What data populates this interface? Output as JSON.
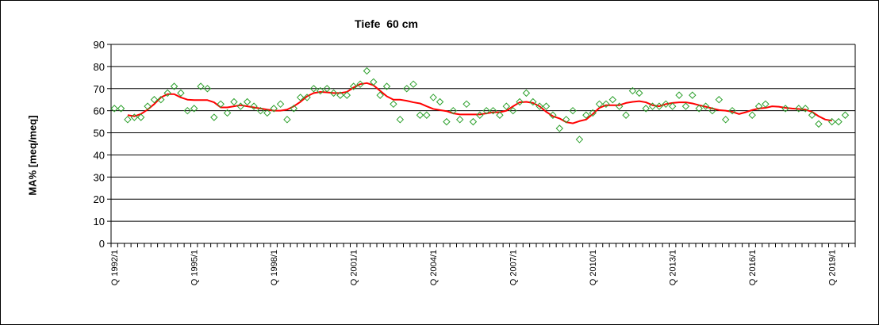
{
  "chart_data": {
    "type": "scatter",
    "title": "Tiefe  60 cm",
    "xlabel": "",
    "ylabel": "MA% [meq/meq]",
    "ylim": [
      0,
      90
    ],
    "yticks": [
      0,
      10,
      20,
      30,
      40,
      50,
      60,
      70,
      80,
      90
    ],
    "grid": true,
    "legend": "none",
    "x_unit": "quarter",
    "x_start": "Q 1992/1",
    "x_end": "Q 2019/4",
    "xtick_labels": [
      "Q 1992/1",
      "Q 1995/1",
      "Q 1998/1",
      "Q 2001/1",
      "Q 2004/1",
      "Q 2007/1",
      "Q 2010/1",
      "Q 2013/1",
      "Q 2016/1",
      "Q 2019/1"
    ],
    "colors": {
      "points": "#2ca02c",
      "trend": "#ff0000",
      "grid": "#000000",
      "axis": "#000000"
    },
    "series": [
      {
        "type": "scatter",
        "marker": "diamond-open",
        "points": [
          [
            "Q 1992/1",
            61
          ],
          [
            "Q 1992/2",
            61
          ],
          [
            "Q 1992/3",
            56
          ],
          [
            "Q 1992/4",
            57
          ],
          [
            "Q 1993/1",
            57
          ],
          [
            "Q 1993/2",
            62
          ],
          [
            "Q 1993/3",
            65
          ],
          [
            "Q 1993/4",
            65
          ],
          [
            "Q 1994/1",
            68
          ],
          [
            "Q 1994/2",
            71
          ],
          [
            "Q 1994/3",
            68
          ],
          [
            "Q 1994/4",
            60
          ],
          [
            "Q 1995/1",
            61
          ],
          [
            "Q 1995/2",
            71
          ],
          [
            "Q 1995/3",
            70
          ],
          [
            "Q 1995/4",
            57
          ],
          [
            "Q 1996/1",
            63
          ],
          [
            "Q 1996/2",
            59
          ],
          [
            "Q 1996/3",
            64
          ],
          [
            "Q 1996/4",
            62
          ],
          [
            "Q 1997/1",
            64
          ],
          [
            "Q 1997/2",
            62
          ],
          [
            "Q 1997/3",
            60
          ],
          [
            "Q 1997/4",
            59
          ],
          [
            "Q 1998/1",
            61
          ],
          [
            "Q 1998/2",
            63
          ],
          [
            "Q 1998/3",
            56
          ],
          [
            "Q 1998/4",
            61
          ],
          [
            "Q 1999/1",
            66
          ],
          [
            "Q 1999/2",
            66
          ],
          [
            "Q 1999/3",
            70
          ],
          [
            "Q 1999/4",
            69
          ],
          [
            "Q 2000/1",
            70
          ],
          [
            "Q 2000/2",
            68
          ],
          [
            "Q 2000/3",
            67
          ],
          [
            "Q 2000/4",
            67
          ],
          [
            "Q 2001/1",
            71
          ],
          [
            "Q 2001/2",
            72
          ],
          [
            "Q 2001/3",
            78
          ],
          [
            "Q 2001/4",
            73
          ],
          [
            "Q 2002/1",
            67
          ],
          [
            "Q 2002/2",
            71
          ],
          [
            "Q 2002/3",
            63
          ],
          [
            "Q 2002/4",
            56
          ],
          [
            "Q 2003/1",
            70
          ],
          [
            "Q 2003/2",
            72
          ],
          [
            "Q 2003/3",
            58
          ],
          [
            "Q 2003/4",
            58
          ],
          [
            "Q 2004/1",
            66
          ],
          [
            "Q 2004/2",
            64
          ],
          [
            "Q 2004/3",
            55
          ],
          [
            "Q 2004/4",
            60
          ],
          [
            "Q 2005/1",
            56
          ],
          [
            "Q 2005/2",
            63
          ],
          [
            "Q 2005/3",
            55
          ],
          [
            "Q 2005/4",
            58
          ],
          [
            "Q 2006/1",
            60
          ],
          [
            "Q 2006/2",
            60
          ],
          [
            "Q 2006/3",
            58
          ],
          [
            "Q 2006/4",
            62
          ],
          [
            "Q 2007/1",
            60
          ],
          [
            "Q 2007/2",
            64
          ],
          [
            "Q 2007/3",
            68
          ],
          [
            "Q 2007/4",
            64
          ],
          [
            "Q 2008/1",
            62
          ],
          [
            "Q 2008/2",
            62
          ],
          [
            "Q 2008/3",
            58
          ],
          [
            "Q 2008/4",
            52
          ],
          [
            "Q 2009/1",
            56
          ],
          [
            "Q 2009/2",
            60
          ],
          [
            "Q 2009/3",
            47
          ],
          [
            "Q 2009/4",
            58
          ],
          [
            "Q 2010/1",
            59
          ],
          [
            "Q 2010/2",
            63
          ],
          [
            "Q 2010/3",
            63
          ],
          [
            "Q 2010/4",
            65
          ],
          [
            "Q 2011/1",
            62
          ],
          [
            "Q 2011/2",
            58
          ],
          [
            "Q 2011/3",
            69
          ],
          [
            "Q 2011/4",
            68
          ],
          [
            "Q 2012/1",
            61
          ],
          [
            "Q 2012/2",
            62
          ],
          [
            "Q 2012/3",
            62
          ],
          [
            "Q 2012/4",
            63
          ],
          [
            "Q 2013/1",
            62
          ],
          [
            "Q 2013/2",
            67
          ],
          [
            "Q 2013/3",
            62
          ],
          [
            "Q 2013/4",
            67
          ],
          [
            "Q 2014/1",
            61
          ],
          [
            "Q 2014/2",
            62
          ],
          [
            "Q 2014/3",
            60
          ],
          [
            "Q 2014/4",
            65
          ],
          [
            "Q 2015/1",
            56
          ],
          [
            "Q 2015/2",
            60
          ],
          [
            "Q 2016/1",
            58
          ],
          [
            "Q 2016/2",
            62
          ],
          [
            "Q 2016/3",
            63
          ],
          [
            "Q 2017/2",
            61
          ],
          [
            "Q 2017/4",
            61
          ],
          [
            "Q 2018/1",
            61
          ],
          [
            "Q 2018/2",
            58
          ],
          [
            "Q 2018/3",
            54
          ],
          [
            "Q 2019/1",
            55
          ],
          [
            "Q 2019/2",
            55
          ],
          [
            "Q 2019/3",
            58
          ]
        ]
      },
      {
        "type": "line",
        "points": [
          [
            "Q 1992/3",
            58
          ],
          [
            "Q 1992/4",
            57.5
          ],
          [
            "Q 1993/1",
            58.5
          ],
          [
            "Q 1993/2",
            60.5
          ],
          [
            "Q 1993/3",
            63
          ],
          [
            "Q 1993/4",
            66
          ],
          [
            "Q 1994/1",
            67.5
          ],
          [
            "Q 1994/2",
            67.5
          ],
          [
            "Q 1994/3",
            66
          ],
          [
            "Q 1994/4",
            65
          ],
          [
            "Q 1995/1",
            64.8
          ],
          [
            "Q 1995/2",
            64.8
          ],
          [
            "Q 1995/3",
            64.8
          ],
          [
            "Q 1995/4",
            63.8
          ],
          [
            "Q 1996/1",
            61.5
          ],
          [
            "Q 1996/2",
            61.5
          ],
          [
            "Q 1996/3",
            62
          ],
          [
            "Q 1996/4",
            62.5
          ],
          [
            "Q 1997/1",
            62
          ],
          [
            "Q 1997/2",
            61.5
          ],
          [
            "Q 1997/3",
            61
          ],
          [
            "Q 1997/4",
            60.5
          ],
          [
            "Q 1998/1",
            60
          ],
          [
            "Q 1998/2",
            60
          ],
          [
            "Q 1998/3",
            60.5
          ],
          [
            "Q 1998/4",
            62
          ],
          [
            "Q 1999/1",
            64
          ],
          [
            "Q 1999/2",
            66.5
          ],
          [
            "Q 1999/3",
            68
          ],
          [
            "Q 1999/4",
            68.5
          ],
          [
            "Q 2000/1",
            68.3
          ],
          [
            "Q 2000/2",
            68
          ],
          [
            "Q 2000/3",
            68
          ],
          [
            "Q 2000/4",
            68.5
          ],
          [
            "Q 2001/1",
            70.5
          ],
          [
            "Q 2001/2",
            72
          ],
          [
            "Q 2001/3",
            72.5
          ],
          [
            "Q 2001/4",
            71.5
          ],
          [
            "Q 2002/1",
            69
          ],
          [
            "Q 2002/2",
            66.5
          ],
          [
            "Q 2002/3",
            65
          ],
          [
            "Q 2002/4",
            65
          ],
          [
            "Q 2003/1",
            64.5
          ],
          [
            "Q 2003/2",
            63.8
          ],
          [
            "Q 2003/3",
            63.3
          ],
          [
            "Q 2003/4",
            62
          ],
          [
            "Q 2004/1",
            60.8
          ],
          [
            "Q 2004/2",
            60.3
          ],
          [
            "Q 2004/3",
            59.8
          ],
          [
            "Q 2004/4",
            58.8
          ],
          [
            "Q 2005/1",
            58.3
          ],
          [
            "Q 2005/2",
            58.3
          ],
          [
            "Q 2005/3",
            58.3
          ],
          [
            "Q 2005/4",
            58.3
          ],
          [
            "Q 2006/1",
            58.8
          ],
          [
            "Q 2006/2",
            59.3
          ],
          [
            "Q 2006/3",
            59.3
          ],
          [
            "Q 2006/4",
            60
          ],
          [
            "Q 2007/1",
            62
          ],
          [
            "Q 2007/2",
            63.8
          ],
          [
            "Q 2007/3",
            64
          ],
          [
            "Q 2007/4",
            63.5
          ],
          [
            "Q 2008/1",
            62
          ],
          [
            "Q 2008/2",
            59.5
          ],
          [
            "Q 2008/3",
            57.5
          ],
          [
            "Q 2008/4",
            56.5
          ],
          [
            "Q 2009/1",
            54.8
          ],
          [
            "Q 2009/2",
            54.3
          ],
          [
            "Q 2009/3",
            55.3
          ],
          [
            "Q 2009/4",
            56
          ],
          [
            "Q 2010/1",
            58.5
          ],
          [
            "Q 2010/2",
            61.3
          ],
          [
            "Q 2010/3",
            62.5
          ],
          [
            "Q 2010/4",
            62.5
          ],
          [
            "Q 2011/1",
            62.5
          ],
          [
            "Q 2011/2",
            63.5
          ],
          [
            "Q 2011/3",
            64
          ],
          [
            "Q 2011/4",
            64.3
          ],
          [
            "Q 2012/1",
            63.8
          ],
          [
            "Q 2012/2",
            62.5
          ],
          [
            "Q 2012/3",
            62
          ],
          [
            "Q 2012/4",
            63
          ],
          [
            "Q 2013/1",
            63.5
          ],
          [
            "Q 2013/2",
            63.8
          ],
          [
            "Q 2013/3",
            63.8
          ],
          [
            "Q 2013/4",
            63.3
          ],
          [
            "Q 2014/1",
            62.5
          ],
          [
            "Q 2014/2",
            61.8
          ],
          [
            "Q 2014/3",
            61
          ],
          [
            "Q 2014/4",
            60.3
          ],
          [
            "Q 2015/1",
            60
          ],
          [
            "Q 2015/2",
            59.5
          ],
          [
            "Q 2015/3",
            58.5
          ],
          [
            "Q 2015/4",
            59.3
          ],
          [
            "Q 2016/1",
            60.3
          ],
          [
            "Q 2016/2",
            61
          ],
          [
            "Q 2016/3",
            61.3
          ],
          [
            "Q 2016/4",
            62
          ],
          [
            "Q 2017/1",
            61.8
          ],
          [
            "Q 2017/2",
            61.3
          ],
          [
            "Q 2017/3",
            61
          ],
          [
            "Q 2017/4",
            60.8
          ],
          [
            "Q 2018/1",
            60.5
          ],
          [
            "Q 2018/2",
            59.5
          ],
          [
            "Q 2018/3",
            57.5
          ],
          [
            "Q 2018/4",
            56
          ],
          [
            "Q 2019/1",
            55.5
          ]
        ]
      }
    ]
  }
}
